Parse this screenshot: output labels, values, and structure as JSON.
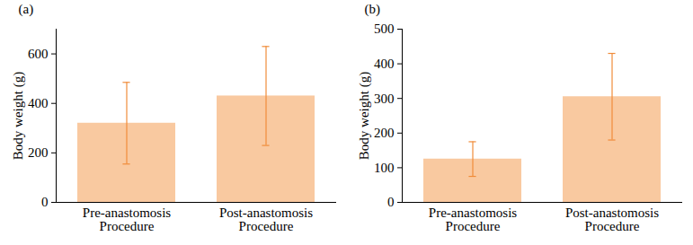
{
  "chart_data": [
    {
      "type": "bar",
      "title": "(a)",
      "y_label": "Body weight (g)",
      "categories": [
        "Pre-anastomosis Procedure",
        "Post-anastomosis Procedure"
      ],
      "values": [
        320,
        430
      ],
      "errors": [
        165,
        200
      ],
      "color": "#f9c9a0",
      "ylim": [
        0,
        700
      ],
      "yticks": [
        0,
        200,
        400,
        600
      ]
    },
    {
      "type": "bar",
      "title": "(b)",
      "y_label": "Body weight (g)",
      "categories": [
        "Pre-anastomosis Procedure",
        "Post-anastomosis Procedure"
      ],
      "values": [
        125,
        305
      ],
      "errors": [
        50,
        125
      ],
      "color": "#f9c9a0",
      "ylim": [
        0,
        500
      ],
      "yticks": [
        0,
        100,
        200,
        300,
        400,
        500
      ]
    }
  ]
}
